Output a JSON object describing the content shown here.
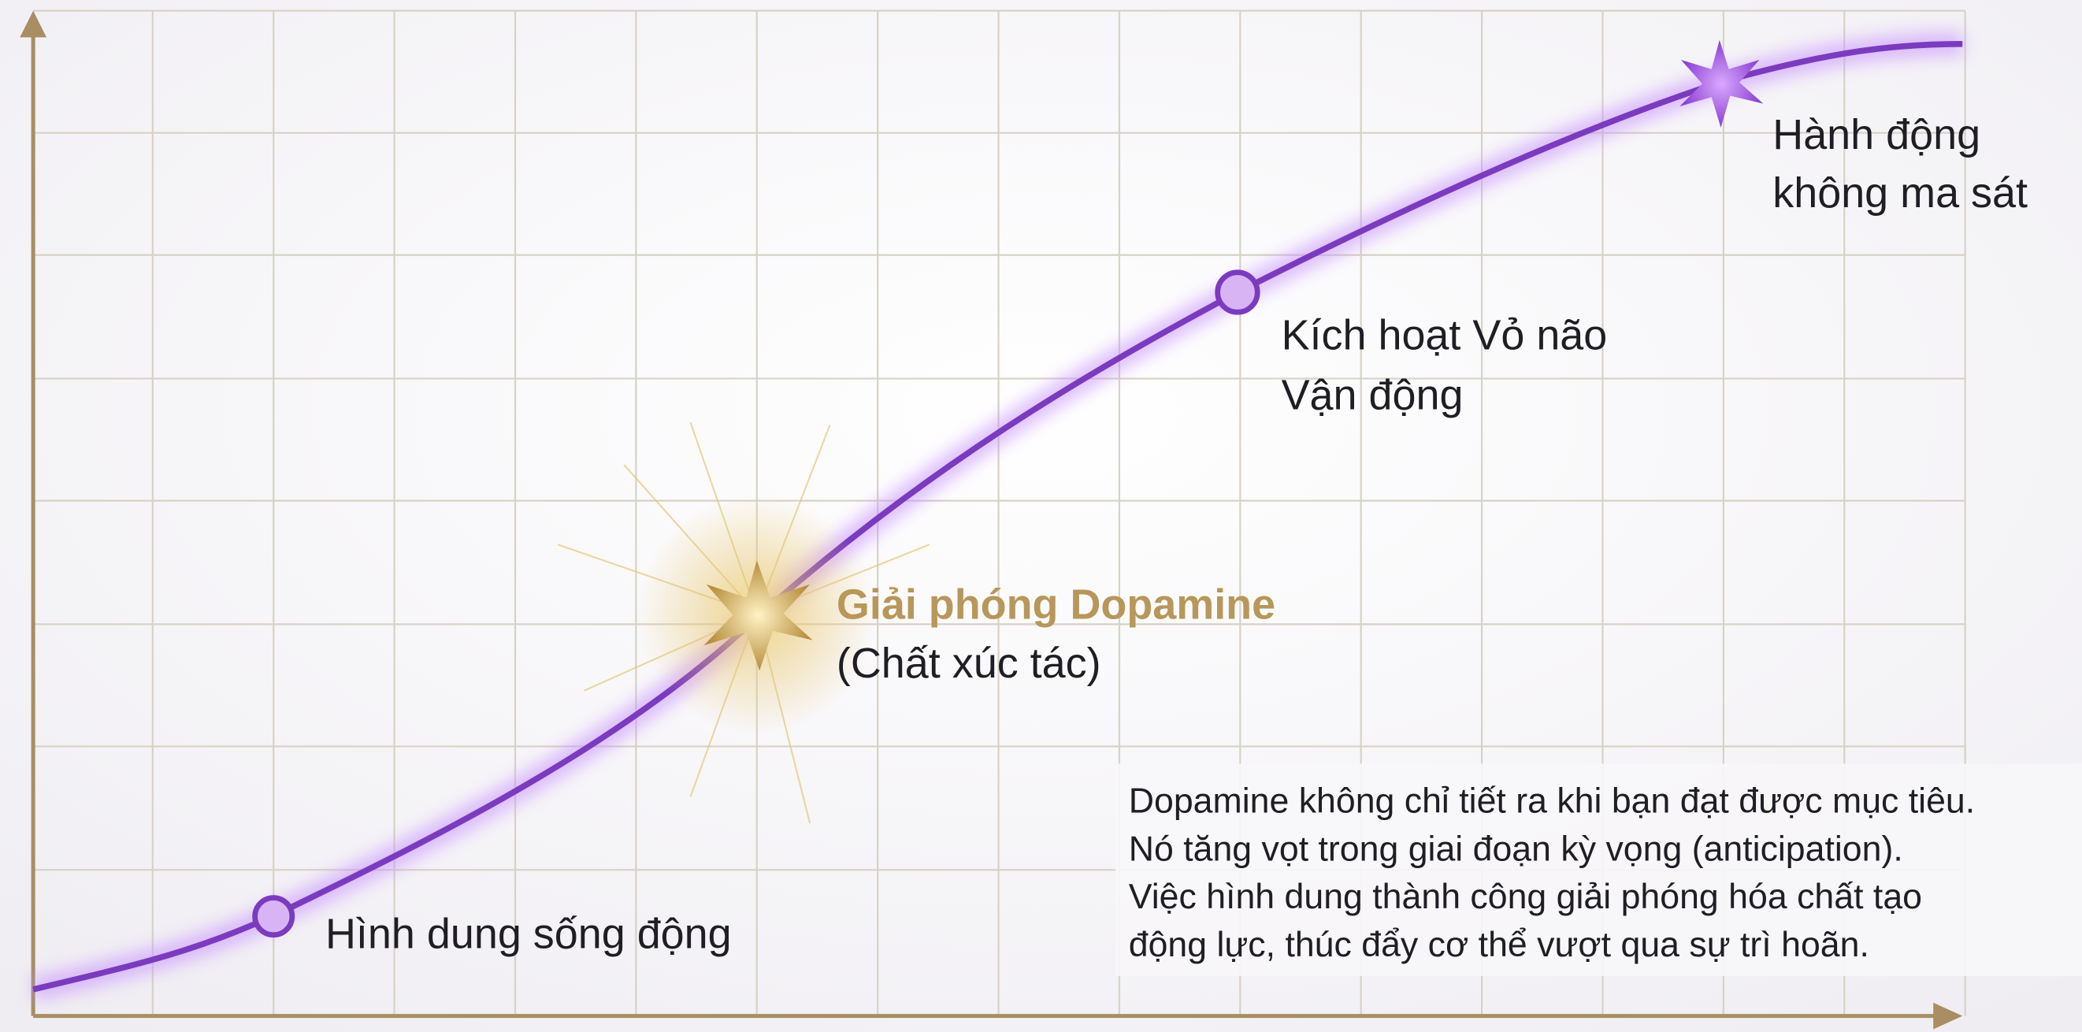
{
  "nodes": [
    {
      "label": [
        "Hình dung sống động"
      ]
    },
    {
      "label": [
        "Giải phóng Dopamine",
        "(Chất xúc tác)"
      ]
    },
    {
      "label": [
        "Kích hoạt Vỏ não",
        "Vận động"
      ]
    },
    {
      "label": [
        "Hành động",
        "không ma sát"
      ]
    }
  ],
  "note": [
    "Dopamine không chỉ tiết ra khi bạn đạt được mục tiêu.",
    "Nó tăng vọt trong giai đoạn kỳ vọng (anticipation).",
    "Việc hình dung thành công giải phóng hóa chất tạo",
    "động lực, thúc đẩy cơ thể vượt qua sự trì hoãn."
  ]
}
